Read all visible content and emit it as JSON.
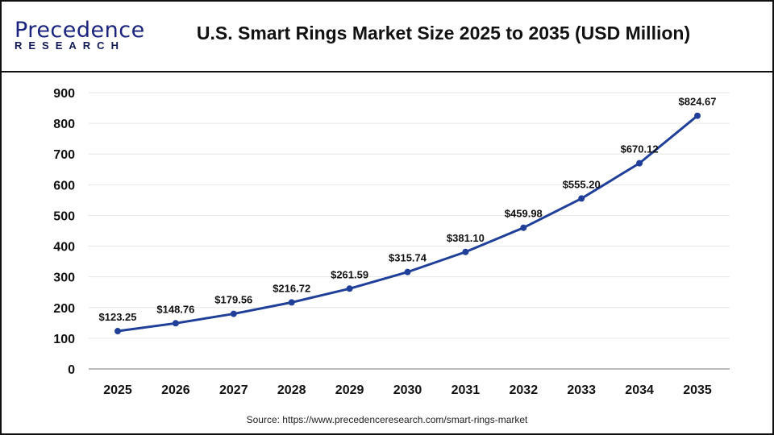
{
  "header": {
    "logo_line1": "Precedence",
    "logo_line2": "RESEARCH",
    "title": "U.S. Smart Rings Market Size 2025 to 2035 (USD Million)"
  },
  "source": "Source: https://www.precedenceresearch.com/smart-rings-market",
  "chart_data": {
    "type": "line",
    "title": "U.S. Smart Rings Market Size 2025 to 2035 (USD Million)",
    "categories": [
      "2025",
      "2026",
      "2027",
      "2028",
      "2029",
      "2030",
      "2031",
      "2032",
      "2033",
      "2034",
      "2035"
    ],
    "values": [
      123.25,
      148.76,
      179.56,
      216.72,
      261.59,
      315.74,
      381.1,
      459.98,
      555.2,
      670.12,
      824.67
    ],
    "data_labels": [
      "$123.25",
      "$148.76",
      "$179.56",
      "$216.72",
      "$261.59",
      "$315.74",
      "$381.10",
      "$459.98",
      "$555.20",
      "$670.12",
      "$824.67"
    ],
    "yticks": [
      0,
      100,
      200,
      300,
      400,
      500,
      600,
      700,
      800,
      900
    ],
    "ylim": [
      0,
      900
    ],
    "grid": true,
    "line_color": "#1f3f99"
  }
}
